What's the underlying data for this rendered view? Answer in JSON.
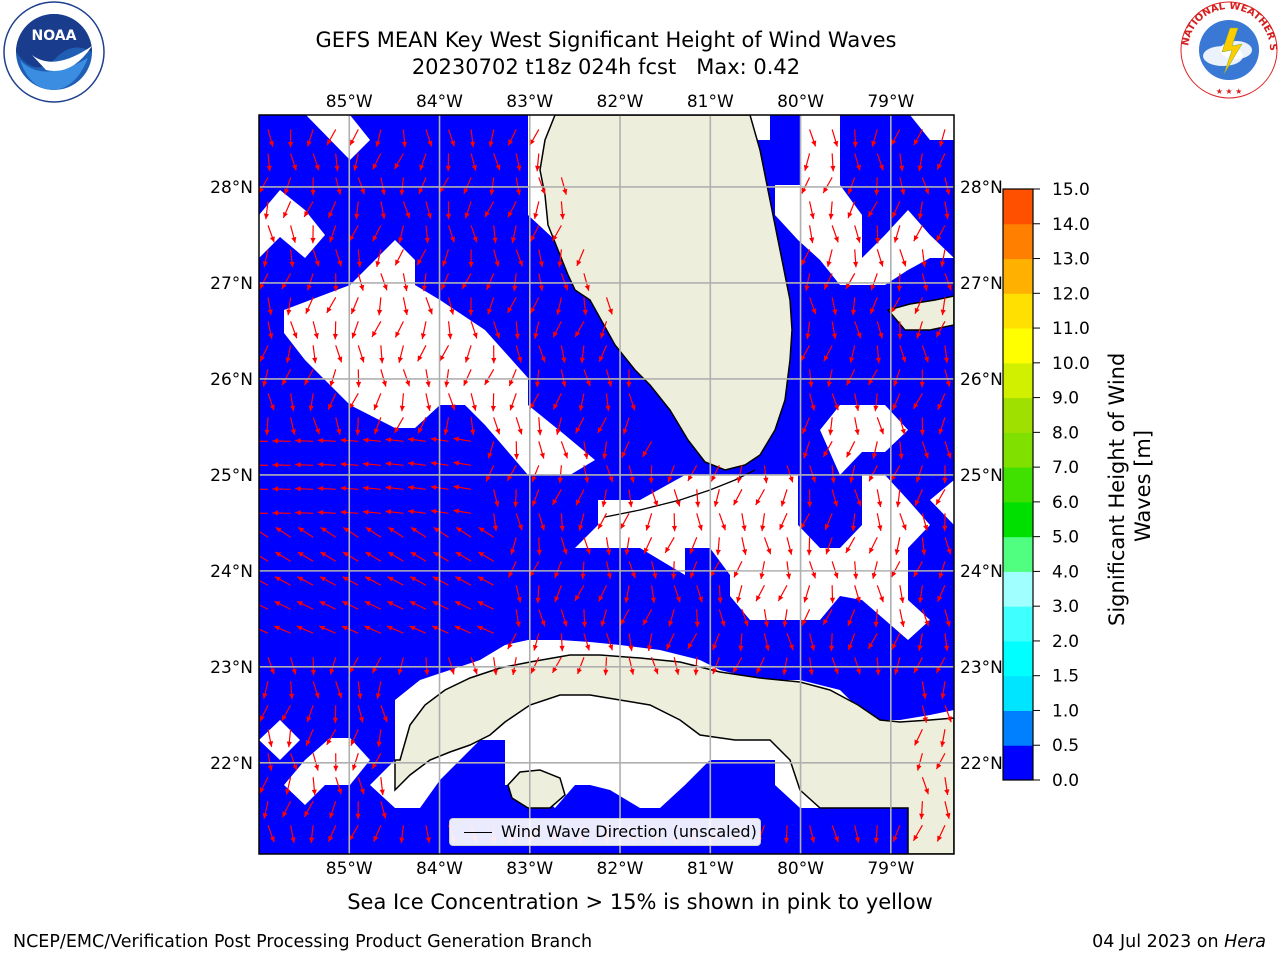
{
  "title": {
    "line1": "GEFS MEAN Key West Significant Height of Wind Waves",
    "line2": "20230702 t18z 024h fcst   Max: 0.42"
  },
  "logos": {
    "left": {
      "name": "noaa-logo",
      "text": "NOAA",
      "ring_text": "NATIONAL OCEANIC AND ATMOSPHERIC ADMINISTRATION · U.S. DEPARTMENT OF COMMERCE"
    },
    "right": {
      "name": "nws-logo",
      "ring_text": "NATIONAL WEATHER SERVICE"
    }
  },
  "map": {
    "lon_labels": [
      "85°W",
      "84°W",
      "83°W",
      "82°W",
      "81°W",
      "80°W",
      "79°W"
    ],
    "lon_values": [
      -85,
      -84,
      -83,
      -82,
      -81,
      -80,
      -79
    ],
    "lat_labels": [
      "28°N",
      "27°N",
      "26°N",
      "25°N",
      "24°N",
      "23°N",
      "22°N"
    ],
    "lat_values": [
      28,
      27,
      26,
      25,
      24,
      23,
      22
    ],
    "lon_range": [
      -86,
      -78.3
    ],
    "lat_range": [
      21.05,
      28.75
    ],
    "colors": {
      "ocean": "#0000ff",
      "land": "#eeeedc",
      "no_data": "#ffffff",
      "arrow": "#ff0000",
      "grid": "#b0b0b0"
    },
    "arrow_direction_note": "Wind Wave Direction (unscaled)"
  },
  "colorbar": {
    "title": "Significant Height of Wind Waves [m]",
    "title_line1": "Significant Height of Wind",
    "title_line2": "Waves [m]",
    "labels": [
      "15.0",
      "14.0",
      "13.0",
      "12.0",
      "11.0",
      "10.0",
      "9.0",
      "8.0",
      "7.0",
      "6.0",
      "5.0",
      "4.0",
      "3.0",
      "2.0",
      "1.5",
      "1.0",
      "0.5",
      "0.0"
    ],
    "colors_bottom_to_top": [
      "#0000ff",
      "#0080ff",
      "#00e5ff",
      "#00ffff",
      "#40ffff",
      "#a0ffff",
      "#50ff80",
      "#00e000",
      "#40e000",
      "#80e000",
      "#a0e000",
      "#d0f000",
      "#ffff00",
      "#ffe000",
      "#ffb000",
      "#ff8000",
      "#ff5000",
      "#ff2000",
      "#ff0000"
    ]
  },
  "legend": {
    "label": "Wind Wave Direction (unscaled)"
  },
  "ice_note": "Sea Ice Concentration > 15% is shown in pink to yellow",
  "footer": {
    "left": "NCEP/EMC/Verification Post Processing Product Generation Branch",
    "right_prefix": "04 Jul 2023 on ",
    "right_host": "Hera"
  }
}
